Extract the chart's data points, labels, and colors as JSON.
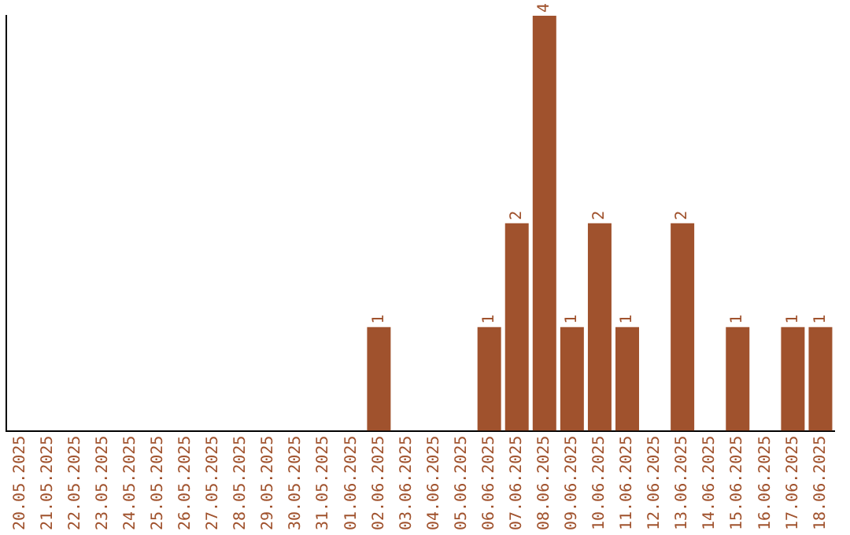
{
  "chart_data": {
    "type": "bar",
    "categories": [
      "20.05.2025",
      "21.05.2025",
      "22.05.2025",
      "23.05.2025",
      "24.05.2025",
      "25.05.2025",
      "26.05.2025",
      "27.05.2025",
      "28.05.2025",
      "29.05.2025",
      "30.05.2025",
      "31.05.2025",
      "01.06.2025",
      "02.06.2025",
      "03.06.2025",
      "04.06.2025",
      "05.06.2025",
      "06.06.2025",
      "07.06.2025",
      "08.06.2025",
      "09.06.2025",
      "10.06.2025",
      "11.06.2025",
      "12.06.2025",
      "13.06.2025",
      "14.06.2025",
      "15.06.2025",
      "16.06.2025",
      "17.06.2025",
      "18.06.2025"
    ],
    "values": [
      null,
      null,
      null,
      null,
      null,
      null,
      null,
      null,
      null,
      null,
      null,
      null,
      null,
      1,
      null,
      null,
      null,
      1,
      2,
      4,
      1,
      2,
      1,
      null,
      2,
      null,
      1,
      null,
      1,
      1
    ],
    "data_labels": true,
    "color": "#a0522d",
    "grid": false,
    "legend": false,
    "tick_labels": "x"
  }
}
